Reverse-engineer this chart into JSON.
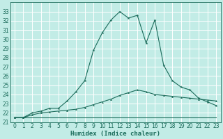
{
  "xlabel": "Humidex (Indice chaleur)",
  "bg_color": "#c2ece6",
  "grid_color": "#ffffff",
  "line_color": "#1a6b5a",
  "xlim": [
    -0.5,
    23.5
  ],
  "ylim": [
    21,
    34
  ],
  "yticks": [
    21,
    22,
    23,
    24,
    25,
    26,
    27,
    28,
    29,
    30,
    31,
    32,
    33
  ],
  "xticks": [
    0,
    1,
    2,
    3,
    4,
    5,
    6,
    7,
    8,
    9,
    10,
    11,
    12,
    13,
    14,
    15,
    16,
    17,
    18,
    19,
    20,
    21,
    22,
    23
  ],
  "series1_y": [
    21.5,
    21.5,
    21.5,
    21.5,
    21.5,
    21.5,
    21.5,
    21.5,
    21.5,
    21.5,
    21.5,
    21.5,
    21.5,
    21.5,
    21.5,
    21.5,
    21.5,
    21.5,
    21.5,
    21.5,
    21.5,
    21.5,
    21.5,
    21.5
  ],
  "series2_y": [
    21.5,
    21.5,
    21.8,
    22.0,
    22.1,
    22.2,
    22.3,
    22.4,
    22.6,
    22.9,
    23.2,
    23.5,
    23.9,
    24.2,
    24.5,
    24.3,
    24.0,
    23.9,
    23.8,
    23.7,
    23.6,
    23.5,
    23.4,
    23.3
  ],
  "series3_y": [
    21.5,
    21.5,
    22.0,
    22.2,
    22.5,
    22.5,
    23.3,
    24.3,
    25.5,
    28.8,
    30.7,
    32.1,
    33.0,
    32.3,
    32.6,
    29.6,
    32.1,
    27.2,
    25.5,
    24.8,
    24.5,
    23.6,
    23.2,
    22.8
  ],
  "ylabel_fontsize": 6,
  "xlabel_fontsize": 6.5,
  "tick_fontsize": 5.5,
  "figsize": [
    3.2,
    2.0
  ],
  "dpi": 100
}
